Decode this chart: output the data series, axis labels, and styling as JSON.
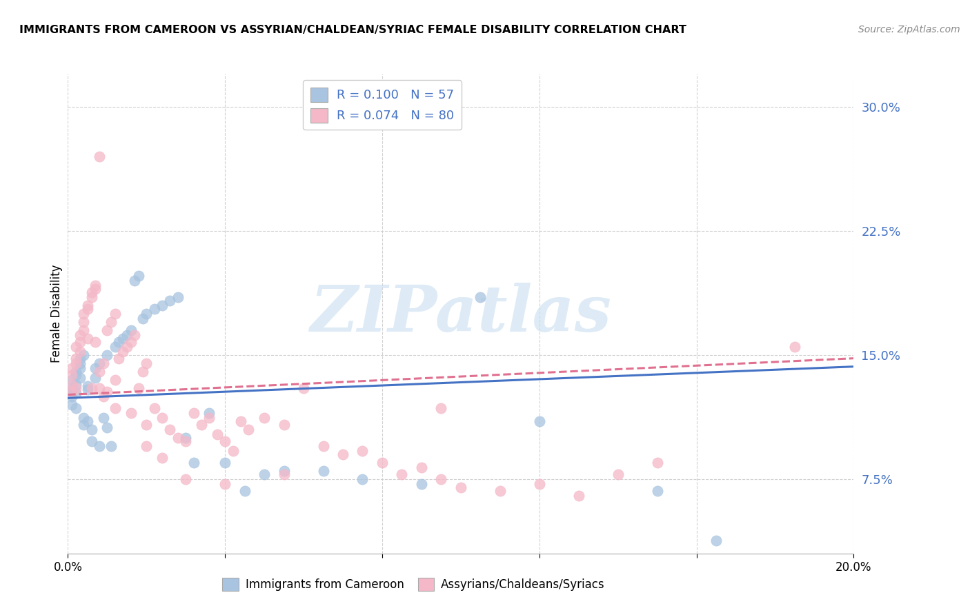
{
  "title": "IMMIGRANTS FROM CAMEROON VS ASSYRIAN/CHALDEAN/SYRIAC FEMALE DISABILITY CORRELATION CHART",
  "source": "Source: ZipAtlas.com",
  "ylabel": "Female Disability",
  "xlim": [
    0.0,
    0.2
  ],
  "ylim": [
    0.03,
    0.32
  ],
  "yticks": [
    0.075,
    0.15,
    0.225,
    0.3
  ],
  "ytick_labels": [
    "7.5%",
    "15.0%",
    "22.5%",
    "30.0%"
  ],
  "xticks": [
    0.0,
    0.04,
    0.08,
    0.12,
    0.16,
    0.2
  ],
  "xtick_labels": [
    "0.0%",
    "",
    "",
    "",
    "",
    "20.0%"
  ],
  "color_blue": "#a8c4e0",
  "color_pink": "#f4b8c8",
  "line_blue": "#4472c4",
  "line_pink": "#e07090",
  "text_blue": "#4472c4",
  "watermark_color": "#c8dff0",
  "watermark": "ZIPatlas",
  "grid_color": "#cccccc",
  "legend_r1": "R = 0.100   N = 57",
  "legend_r2": "R = 0.074   N = 80",
  "legend_label1": "Immigrants from Cameroon",
  "legend_label2": "Assyrians/Chaldeans/Syriacs",
  "blue_x": [
    0.001,
    0.001,
    0.001,
    0.001,
    0.001,
    0.002,
    0.002,
    0.002,
    0.002,
    0.002,
    0.003,
    0.003,
    0.003,
    0.003,
    0.004,
    0.004,
    0.004,
    0.005,
    0.005,
    0.005,
    0.006,
    0.006,
    0.007,
    0.007,
    0.008,
    0.008,
    0.009,
    0.01,
    0.01,
    0.011,
    0.012,
    0.013,
    0.014,
    0.015,
    0.016,
    0.017,
    0.018,
    0.019,
    0.02,
    0.022,
    0.024,
    0.026,
    0.028,
    0.03,
    0.032,
    0.036,
    0.04,
    0.045,
    0.05,
    0.055,
    0.065,
    0.075,
    0.09,
    0.105,
    0.12,
    0.15,
    0.165
  ],
  "blue_y": [
    0.13,
    0.125,
    0.12,
    0.135,
    0.128,
    0.132,
    0.127,
    0.118,
    0.14,
    0.138,
    0.142,
    0.136,
    0.145,
    0.148,
    0.15,
    0.112,
    0.108,
    0.131,
    0.129,
    0.11,
    0.105,
    0.098,
    0.142,
    0.136,
    0.145,
    0.095,
    0.112,
    0.15,
    0.106,
    0.095,
    0.155,
    0.158,
    0.16,
    0.162,
    0.165,
    0.195,
    0.198,
    0.172,
    0.175,
    0.178,
    0.18,
    0.183,
    0.185,
    0.1,
    0.085,
    0.115,
    0.085,
    0.068,
    0.078,
    0.08,
    0.08,
    0.075,
    0.072,
    0.185,
    0.11,
    0.068,
    0.038
  ],
  "pink_x": [
    0.001,
    0.001,
    0.001,
    0.001,
    0.002,
    0.002,
    0.002,
    0.002,
    0.003,
    0.003,
    0.003,
    0.004,
    0.004,
    0.004,
    0.005,
    0.005,
    0.005,
    0.006,
    0.006,
    0.006,
    0.007,
    0.007,
    0.007,
    0.008,
    0.008,
    0.009,
    0.009,
    0.01,
    0.01,
    0.011,
    0.012,
    0.012,
    0.013,
    0.014,
    0.015,
    0.016,
    0.017,
    0.018,
    0.019,
    0.02,
    0.02,
    0.022,
    0.024,
    0.026,
    0.028,
    0.03,
    0.032,
    0.034,
    0.036,
    0.038,
    0.04,
    0.042,
    0.044,
    0.046,
    0.05,
    0.055,
    0.06,
    0.065,
    0.07,
    0.075,
    0.08,
    0.085,
    0.09,
    0.095,
    0.1,
    0.11,
    0.12,
    0.13,
    0.14,
    0.15,
    0.008,
    0.012,
    0.016,
    0.02,
    0.024,
    0.03,
    0.04,
    0.055,
    0.095,
    0.185
  ],
  "pink_y": [
    0.128,
    0.132,
    0.138,
    0.142,
    0.13,
    0.145,
    0.148,
    0.155,
    0.152,
    0.158,
    0.162,
    0.165,
    0.17,
    0.175,
    0.178,
    0.18,
    0.16,
    0.185,
    0.188,
    0.13,
    0.19,
    0.192,
    0.158,
    0.14,
    0.13,
    0.145,
    0.125,
    0.128,
    0.165,
    0.17,
    0.175,
    0.135,
    0.148,
    0.152,
    0.155,
    0.158,
    0.162,
    0.13,
    0.14,
    0.145,
    0.108,
    0.118,
    0.112,
    0.105,
    0.1,
    0.098,
    0.115,
    0.108,
    0.112,
    0.102,
    0.098,
    0.092,
    0.11,
    0.105,
    0.112,
    0.108,
    0.13,
    0.095,
    0.09,
    0.092,
    0.085,
    0.078,
    0.082,
    0.075,
    0.07,
    0.068,
    0.072,
    0.065,
    0.078,
    0.085,
    0.27,
    0.118,
    0.115,
    0.095,
    0.088,
    0.075,
    0.072,
    0.078,
    0.118,
    0.155
  ]
}
